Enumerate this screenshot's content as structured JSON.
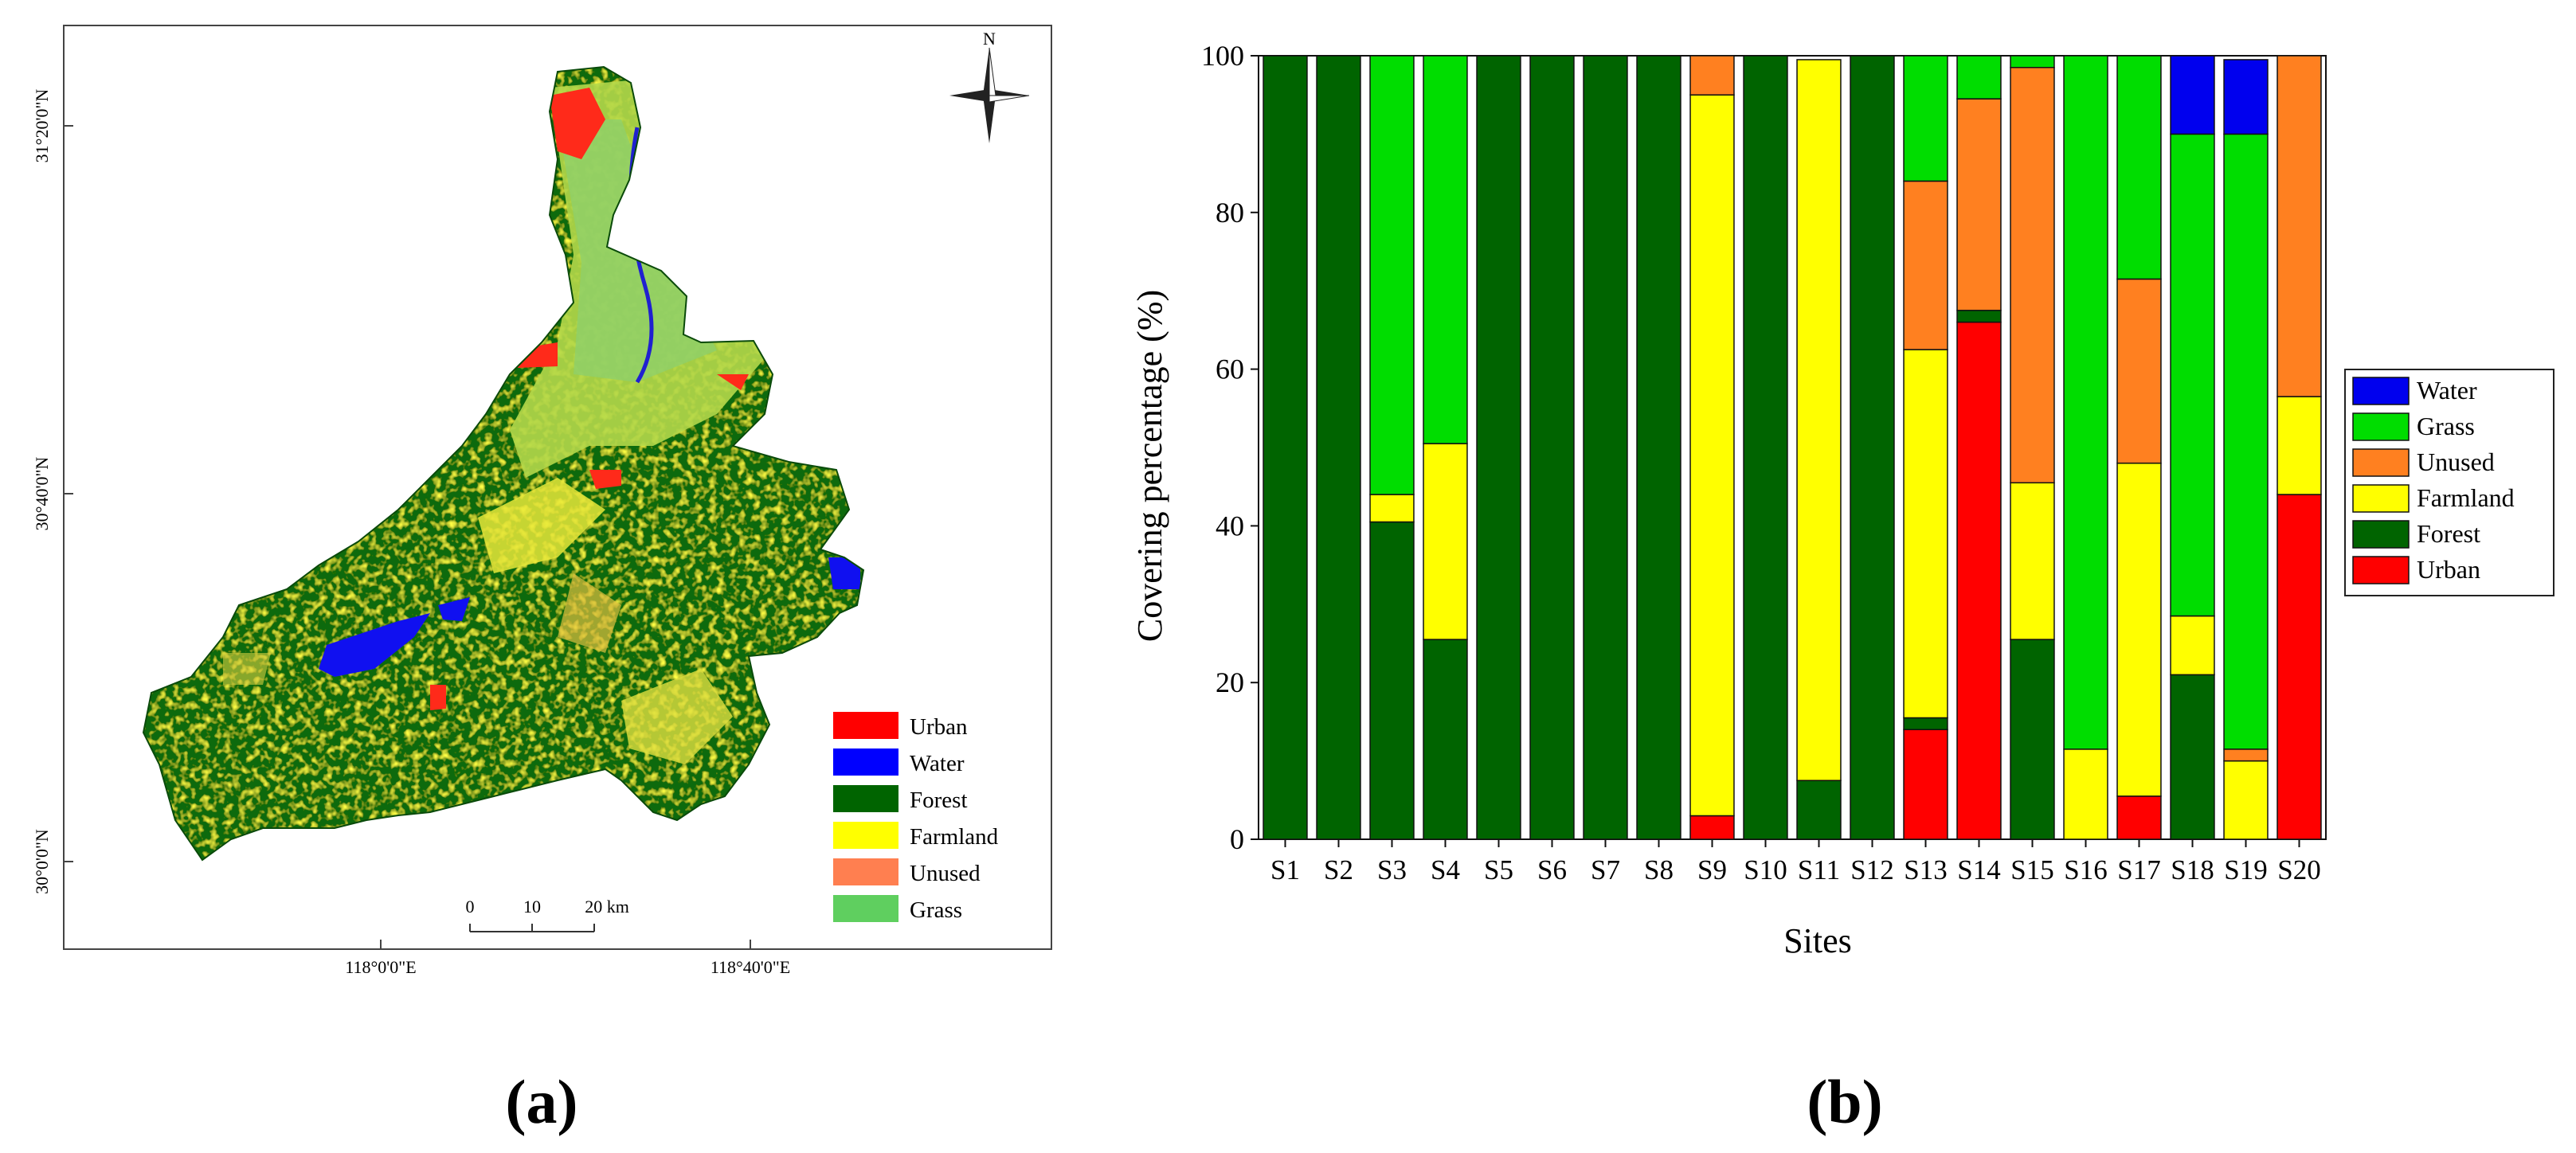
{
  "figure": {
    "panel_a_label": "(a)",
    "panel_b_label": "(b)"
  },
  "map": {
    "lat_labels": [
      "31°20'0\"N",
      "30°40'0\"N",
      "30°0'0\"N"
    ],
    "lon_labels": [
      "118°0'0\"E",
      "118°40'0\"E"
    ],
    "north": "N",
    "scale_labels": [
      "0",
      "10",
      "20 km"
    ],
    "legend": [
      {
        "label": "Urban",
        "color": "#ff0000"
      },
      {
        "label": "Water",
        "color": "#0000ff"
      },
      {
        "label": "Forest",
        "color": "#006400"
      },
      {
        "label": "Farmland",
        "color": "#ffff00"
      },
      {
        "label": "Unused",
        "color": "#ff7f50"
      },
      {
        "label": "Grass",
        "color": "#5fcf5f"
      }
    ]
  },
  "chart_data": {
    "type": "bar",
    "stacked": true,
    "xlabel": "Sites",
    "ylabel": "Covering percentage (%)",
    "ylim": [
      0,
      100
    ],
    "yticks": [
      0,
      20,
      40,
      60,
      80,
      100
    ],
    "categories": [
      "S1",
      "S2",
      "S3",
      "S4",
      "S5",
      "S6",
      "S7",
      "S8",
      "S9",
      "S10",
      "S11",
      "S12",
      "S13",
      "S14",
      "S15",
      "S16",
      "S17",
      "S18",
      "S19",
      "S20"
    ],
    "legend_position": "right",
    "series": [
      {
        "name": "Urban",
        "color": "#ff0000",
        "values": [
          0,
          0,
          0,
          0,
          0,
          0,
          0,
          0,
          3,
          0,
          0,
          0,
          14,
          66,
          0,
          0,
          5.5,
          0,
          0,
          44
        ]
      },
      {
        "name": "Forest",
        "color": "#006400",
        "values": [
          100,
          100,
          40.5,
          25.5,
          100,
          100,
          100,
          100,
          0,
          100,
          7.5,
          100,
          1.5,
          1.5,
          25.5,
          0,
          0,
          21,
          0,
          0
        ]
      },
      {
        "name": "Farmland",
        "color": "#ffff00",
        "values": [
          0,
          0,
          3.5,
          25,
          0,
          0,
          0,
          0,
          92,
          0,
          92,
          0,
          47,
          0,
          20,
          11.5,
          42.5,
          7.5,
          10,
          12.5
        ]
      },
      {
        "name": "Unused",
        "color": "#ff8020",
        "values": [
          0,
          0,
          0,
          0,
          0,
          0,
          0,
          0,
          5,
          0,
          0,
          0,
          21.5,
          27,
          53,
          0,
          23.5,
          0,
          1.5,
          43.5
        ]
      },
      {
        "name": "Grass",
        "color": "#00dd00",
        "values": [
          0,
          0,
          56,
          49.5,
          0,
          0,
          0,
          0,
          0,
          0,
          0,
          0,
          16,
          5.5,
          1.5,
          88.5,
          28.5,
          61.5,
          78.5,
          0
        ]
      },
      {
        "name": "Water",
        "color": "#0000ee",
        "values": [
          0,
          0,
          0,
          0,
          0,
          0,
          0,
          0,
          0,
          0,
          0,
          0,
          0,
          0,
          0,
          0,
          0,
          10,
          9.5,
          0
        ]
      }
    ],
    "legend_order": [
      "Water",
      "Grass",
      "Unused",
      "Farmland",
      "Forest",
      "Urban"
    ]
  }
}
